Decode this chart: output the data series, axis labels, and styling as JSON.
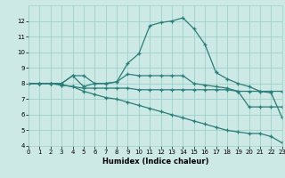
{
  "xlabel": "Humidex (Indice chaleur)",
  "xlim": [
    0,
    23
  ],
  "ylim": [
    4,
    13
  ],
  "yticks": [
    4,
    5,
    6,
    7,
    8,
    9,
    10,
    11,
    12
  ],
  "xticks": [
    0,
    1,
    2,
    3,
    4,
    5,
    6,
    7,
    8,
    9,
    10,
    11,
    12,
    13,
    14,
    15,
    16,
    17,
    18,
    19,
    20,
    21,
    22,
    23
  ],
  "background_color": "#cce9e5",
  "grid_color": "#9ecfca",
  "line_color": "#2a7d78",
  "line1": [
    8.0,
    8.0,
    8.0,
    8.0,
    8.5,
    7.8,
    8.0,
    8.0,
    8.1,
    9.3,
    9.9,
    11.7,
    11.9,
    12.0,
    12.2,
    11.5,
    10.5,
    8.7,
    8.3,
    8.0,
    7.8,
    7.5,
    7.5,
    7.5
  ],
  "line2": [
    8.0,
    8.0,
    8.0,
    8.0,
    8.5,
    8.5,
    8.0,
    8.0,
    8.1,
    8.6,
    8.5,
    8.5,
    8.5,
    8.5,
    8.5,
    8.0,
    7.9,
    7.8,
    7.7,
    7.5,
    6.5,
    6.5,
    6.5,
    6.5
  ],
  "line3": [
    8.0,
    8.0,
    8.0,
    7.9,
    7.8,
    7.7,
    7.7,
    7.7,
    7.7,
    7.7,
    7.6,
    7.6,
    7.6,
    7.6,
    7.6,
    7.6,
    7.6,
    7.6,
    7.6,
    7.5,
    7.5,
    7.5,
    7.4,
    5.8
  ],
  "line4": [
    8.0,
    8.0,
    8.0,
    7.9,
    7.8,
    7.5,
    7.3,
    7.1,
    7.0,
    6.8,
    6.6,
    6.4,
    6.2,
    6.0,
    5.8,
    5.6,
    5.4,
    5.2,
    5.0,
    4.9,
    4.8,
    4.8,
    4.6,
    4.2
  ]
}
